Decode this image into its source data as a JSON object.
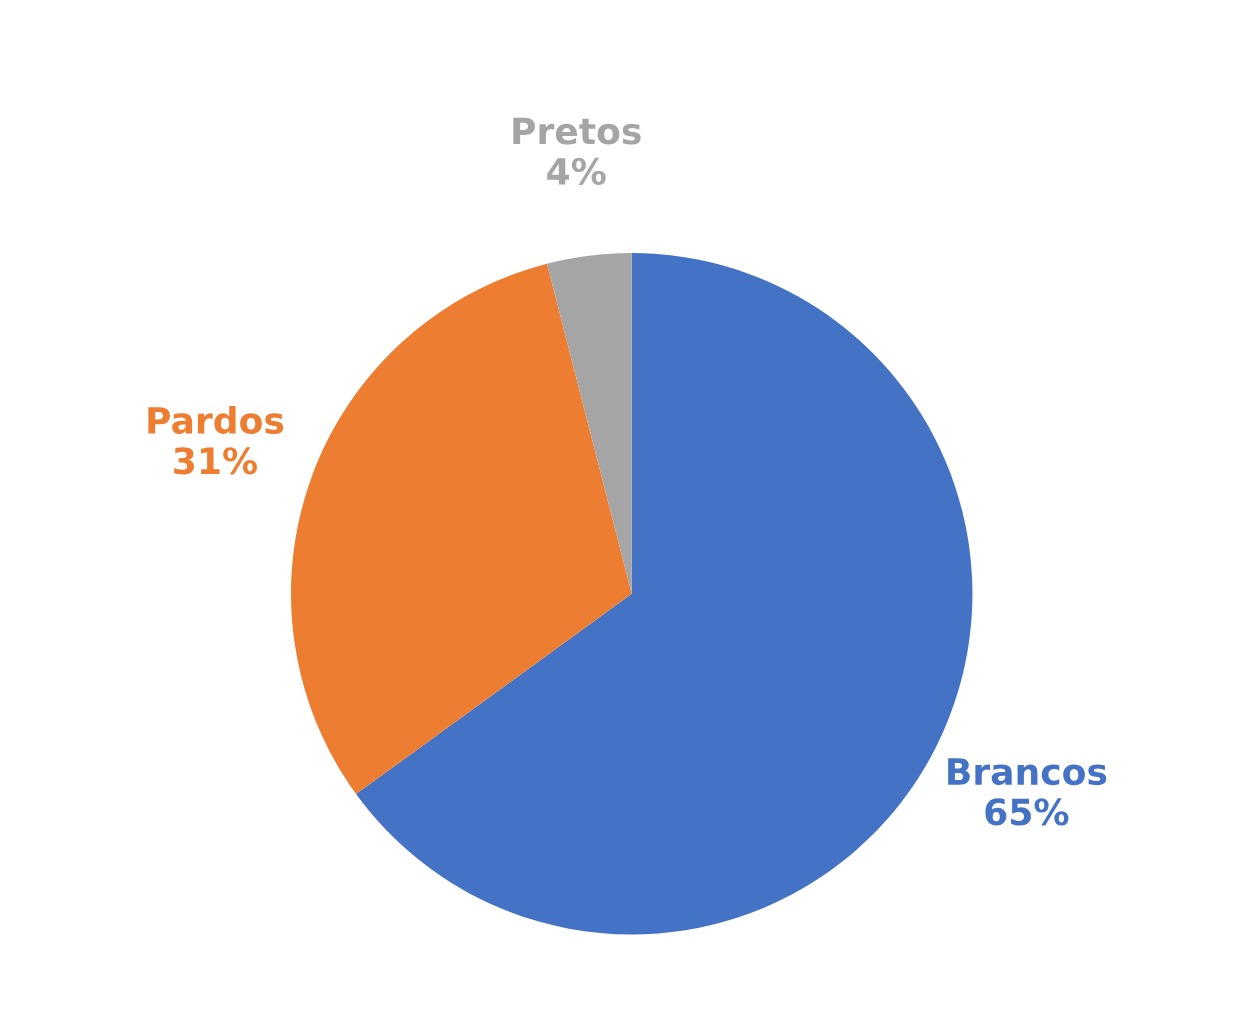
{
  "chart_data": {
    "type": "pie",
    "categories": [
      "Brancos",
      "Pardos",
      "Pretos"
    ],
    "values": [
      65,
      31,
      4
    ],
    "value_labels": [
      "65%",
      "31%",
      "4%"
    ],
    "colors": [
      "#4472c4",
      "#ed7d31",
      "#a5a5a5"
    ]
  }
}
